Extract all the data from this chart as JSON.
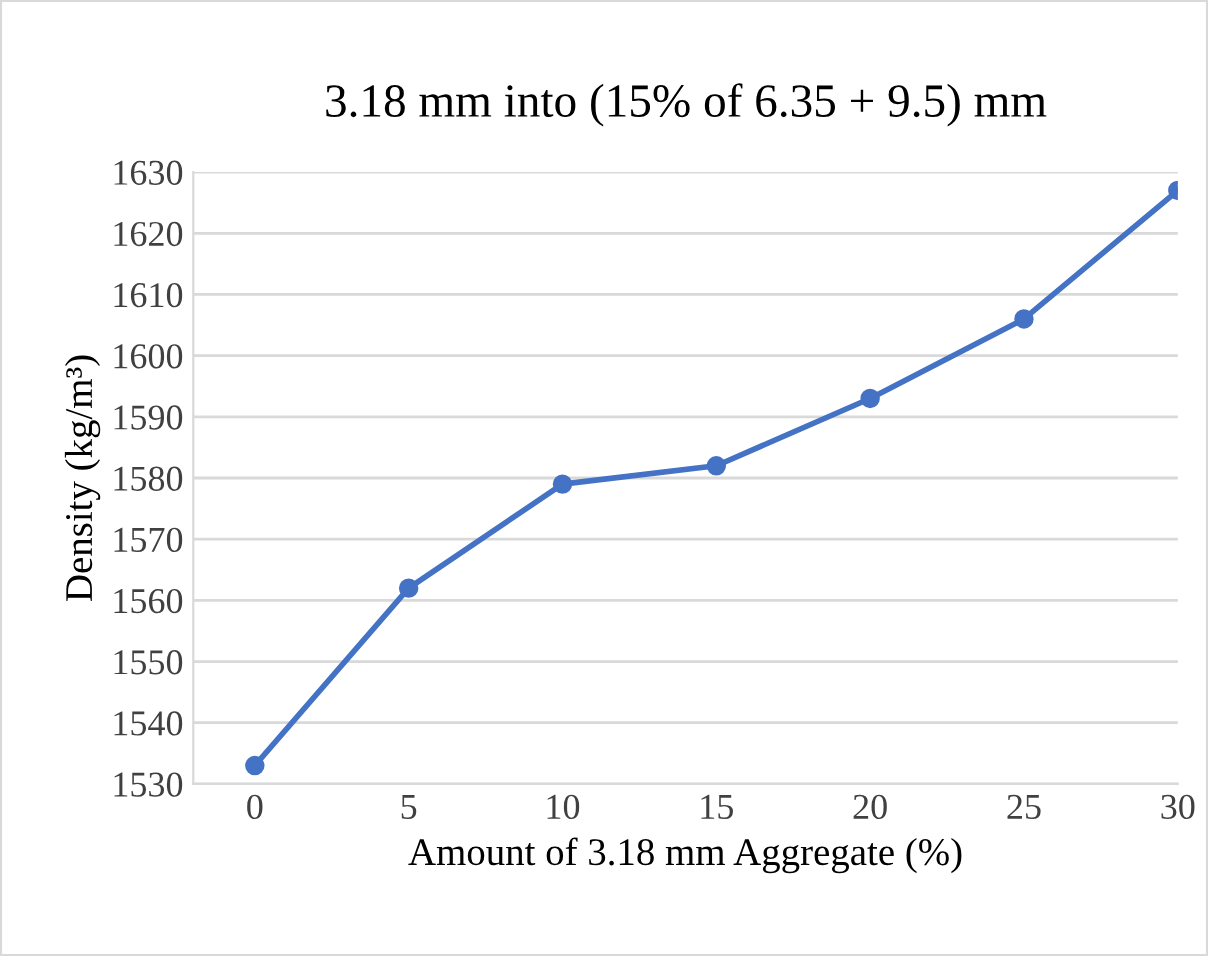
{
  "chart_data": {
    "type": "line",
    "title": "3.18 mm into (15% of 6.35 + 9.5) mm",
    "xlabel": "Amount of 3.18 mm Aggregate (%)",
    "ylabel": "Density (kg/m³)",
    "x": [
      0,
      5,
      10,
      15,
      20,
      25,
      30
    ],
    "series": [
      {
        "color": "#4472c4",
        "values": [
          1533,
          1562,
          1579,
          1582,
          1593,
          1606,
          1627
        ]
      }
    ],
    "xlim": [
      -2,
      30
    ],
    "xticks": [
      0,
      5,
      10,
      15,
      20,
      25,
      30
    ],
    "ylim": [
      1530,
      1630
    ],
    "yticks": [
      1530,
      1540,
      1550,
      1560,
      1570,
      1580,
      1590,
      1600,
      1610,
      1620,
      1630
    ],
    "grid": "y",
    "marker": "circle",
    "line_style": "solid",
    "legend": false
  }
}
